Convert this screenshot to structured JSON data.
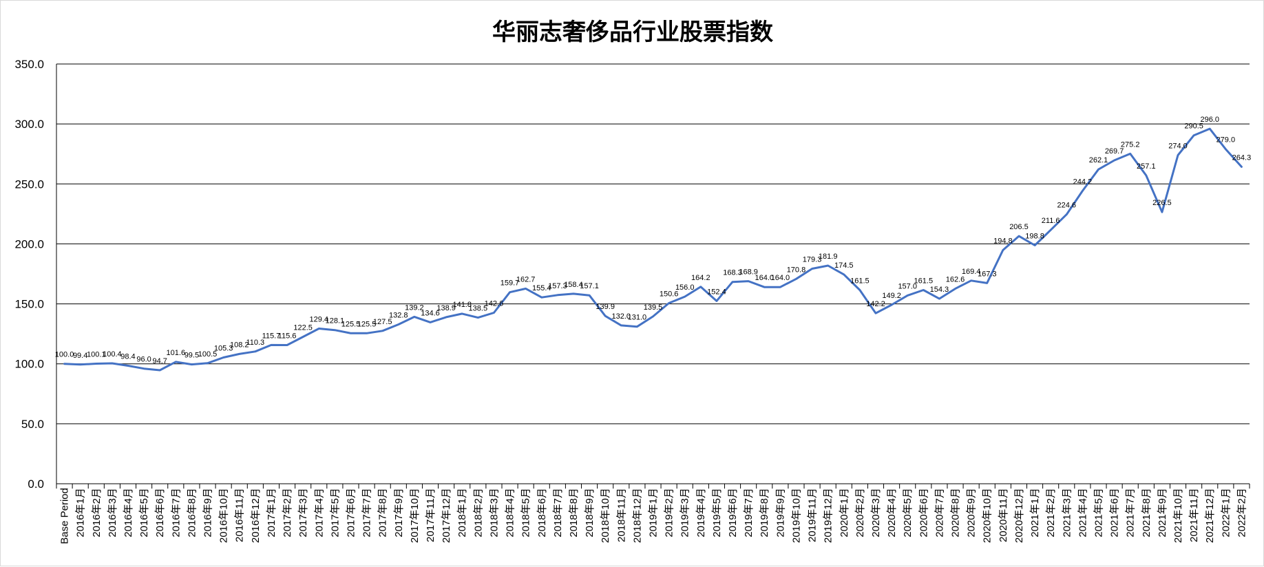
{
  "chart_data": {
    "type": "line",
    "title": "华丽志奢侈品行业股票指数",
    "xlabel": "",
    "ylabel": "",
    "ylim": [
      0,
      350
    ],
    "yticks": [
      "0.0",
      "50.0",
      "100.0",
      "150.0",
      "200.0",
      "250.0",
      "300.0",
      "350.0"
    ],
    "grid": true,
    "legend": "none",
    "line_color": "#4472c4",
    "categories": [
      "Base Period",
      "2016年1月",
      "2016年2月",
      "2016年3月",
      "2016年4月",
      "2016年5月",
      "2016年6月",
      "2016年7月",
      "2016年8月",
      "2016年9月",
      "2016年10月",
      "2016年11月",
      "2016年12月",
      "2017年1月",
      "2017年2月",
      "2017年3月",
      "2017年4月",
      "2017年5月",
      "2017年6月",
      "2017年7月",
      "2017年8月",
      "2017年9月",
      "2017年10月",
      "2017年11月",
      "2017年12月",
      "2018年1月",
      "2018年2月",
      "2018年3月",
      "2018年4月",
      "2018年5月",
      "2018年6月",
      "2018年7月",
      "2018年8月",
      "2018年9月",
      "2018年10月",
      "2018年11月",
      "2018年12月",
      "2019年1月",
      "2019年2月",
      "2019年3月",
      "2019年4月",
      "2019年5月",
      "2019年6月",
      "2019年7月",
      "2019年8月",
      "2019年9月",
      "2019年10月",
      "2019年11月",
      "2019年12月",
      "2020年1月",
      "2020年2月",
      "2020年3月",
      "2020年4月",
      "2020年5月",
      "2020年6月",
      "2020年7月",
      "2020年8月",
      "2020年9月",
      "2020年10月",
      "2020年11月",
      "2020年12月",
      "2021年1月",
      "2021年2月",
      "2021年3月",
      "2021年4月",
      "2021年5月",
      "2021年6月",
      "2021年7月",
      "2021年8月",
      "2021年9月",
      "2021年10月",
      "2021年11月",
      "2021年12月",
      "2022年1月",
      "2022年2月"
    ],
    "values": [
      100.0,
      99.4,
      100.1,
      100.4,
      98.4,
      96.0,
      94.7,
      101.6,
      99.5,
      100.5,
      105.3,
      108.2,
      110.3,
      115.7,
      115.6,
      122.5,
      129.4,
      128.1,
      125.5,
      125.5,
      127.5,
      132.8,
      139.2,
      134.6,
      138.9,
      141.8,
      138.5,
      142.6,
      159.7,
      162.7,
      155.4,
      157.3,
      158.4,
      157.1,
      139.9,
      132.0,
      131.0,
      139.5,
      150.6,
      156.0,
      164.2,
      152.4,
      168.3,
      168.9,
      164.0,
      164.0,
      170.8,
      179.3,
      181.9,
      174.5,
      161.5,
      142.2,
      149.2,
      157.0,
      161.5,
      154.3,
      162.6,
      169.4,
      167.3,
      194.8,
      206.5,
      198.8,
      211.6,
      224.6,
      244.2,
      262.1,
      269.7,
      275.2,
      257.1,
      226.5,
      274.0,
      290.5,
      296.0,
      279.0,
      264.3
    ]
  }
}
